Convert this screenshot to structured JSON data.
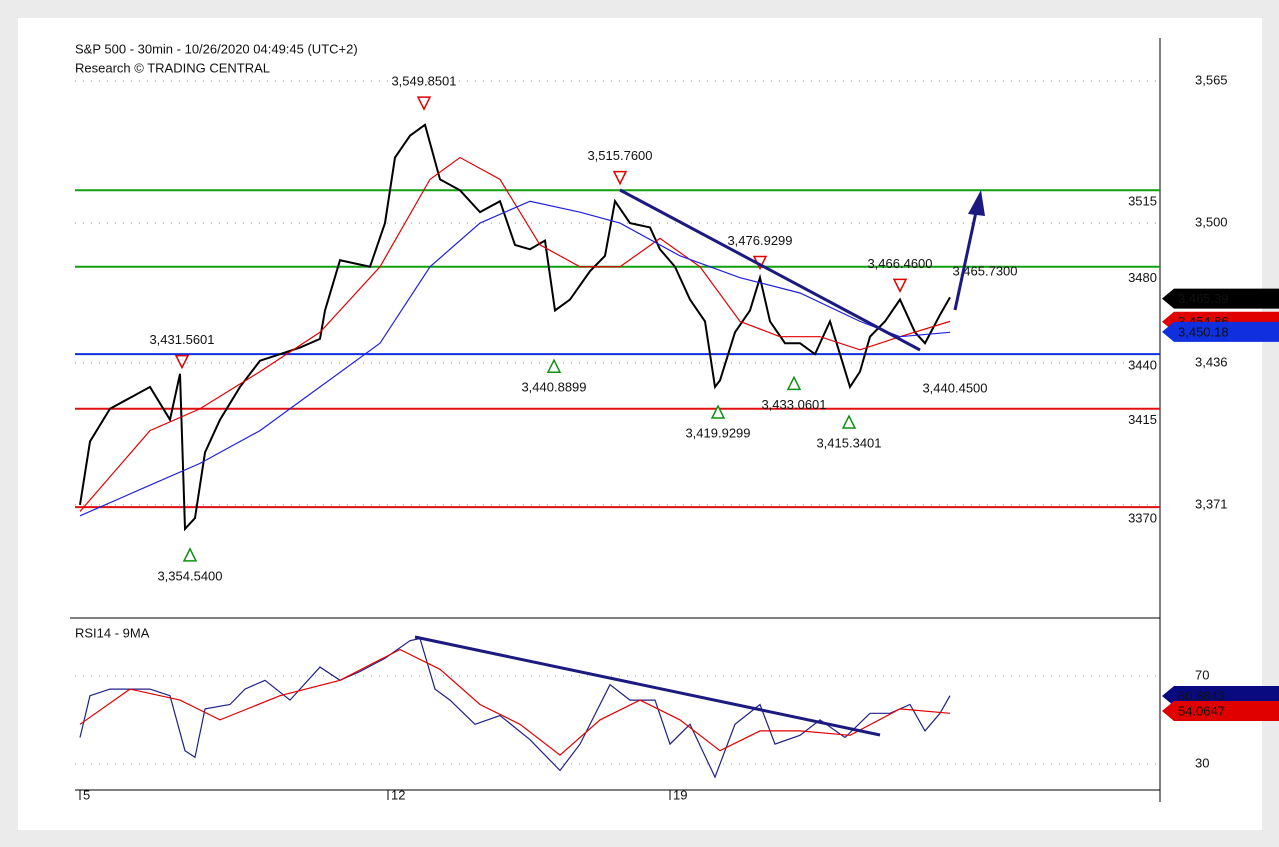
{
  "chart_data": [
    {
      "type": "line",
      "title": "S&P 500 - 30min - 10/26/2020 04:49:45 (UTC+2)",
      "subtitle": "Research © TRADING CENTRAL",
      "xlim": [
        0,
        108.5
      ],
      "ylim": [
        3320.6,
        3583.8
      ],
      "yticks": [
        {
          "value": 3565,
          "label": "3,565"
        },
        {
          "value": 3500,
          "label": "3,500"
        },
        {
          "value": 3436,
          "label": "3,436"
        },
        {
          "value": 3371,
          "label": "3,371"
        }
      ],
      "grid": true,
      "series": [
        {
          "name": "S&P 500",
          "color": "#000000",
          "x": [
            0.5,
            1.5,
            3.5,
            5.5,
            7.5,
            9.5,
            10.5,
            11,
            12,
            13,
            14.5,
            16.5,
            18.5,
            20.5,
            22.5,
            24.5,
            25,
            26.5,
            29.5,
            31,
            32,
            33.5,
            35,
            36.5,
            38.5,
            40.5,
            42.5,
            44,
            45.5,
            47,
            48,
            49.5,
            51.5,
            53,
            54,
            55.5,
            57.5,
            58.5,
            60,
            61.5,
            63,
            64,
            64.5,
            66,
            67.5,
            68.5,
            69.5,
            71,
            72.5,
            74,
            75.5,
            76.5,
            77.5,
            78.5,
            79.5,
            81,
            82.5,
            84,
            85,
            86.5,
            87.5
          ],
          "values": [
            3371,
            3400,
            3415,
            3420,
            3425,
            3410,
            3431,
            3360,
            3365,
            3395,
            3410,
            3425,
            3437,
            3440,
            3443,
            3447,
            3460,
            3483,
            3480,
            3500,
            3530,
            3540,
            3545,
            3520,
            3515,
            3505,
            3510,
            3490,
            3488,
            3492,
            3460,
            3465,
            3478,
            3485,
            3510,
            3500,
            3498,
            3488,
            3480,
            3465,
            3455,
            3425,
            3428,
            3450,
            3460,
            3475,
            3455,
            3445,
            3445,
            3440,
            3455,
            3440,
            3425,
            3432,
            3448,
            3455,
            3465,
            3450,
            3445,
            3458,
            3466
          ]
        },
        {
          "name": "MA fast",
          "color": "#e00000",
          "x": [
            0.5,
            7.5,
            12.5,
            18.5,
            24.5,
            30.5,
            35.5,
            38.5,
            42.5,
            46.5,
            50.5,
            54.5,
            58.5,
            62.5,
            66.5,
            70.5,
            74.5,
            78.5,
            82.5,
            87.5
          ],
          "values": [
            3368,
            3405,
            3415,
            3432,
            3450,
            3480,
            3520,
            3530,
            3520,
            3490,
            3480,
            3480,
            3493,
            3480,
            3455,
            3448,
            3448,
            3442,
            3448,
            3455
          ]
        },
        {
          "name": "MA slow",
          "color": "#2020e0",
          "x": [
            0.5,
            7.5,
            12.5,
            18.5,
            24.5,
            30.5,
            35.5,
            40.5,
            45.5,
            50.5,
            54.5,
            60.5,
            66.5,
            72.5,
            78.5,
            82.5,
            87.5
          ],
          "values": [
            3366,
            3380,
            3390,
            3405,
            3425,
            3445,
            3480,
            3500,
            3510,
            3505,
            3500,
            3485,
            3475,
            3468,
            3455,
            3448,
            3450
          ]
        }
      ],
      "levels": [
        {
          "value": 3515,
          "color": "#10a010"
        },
        {
          "value": 3480,
          "color": "#10a010"
        },
        {
          "value": 3440,
          "color": "#1030e0"
        },
        {
          "value": 3415,
          "color": "#e01010"
        },
        {
          "value": 3370,
          "color": "#e01010"
        }
      ],
      "tags": [
        {
          "value": 3465.39,
          "label": "3,465.39",
          "color": "#000000"
        },
        {
          "value": 3454.86,
          "label": "3,454.86",
          "color": "#e00000"
        },
        {
          "value": 3450.18,
          "label": "3,450.18",
          "color": "#1030e0"
        }
      ],
      "annotations": [
        {
          "x": 34.9,
          "value": 3549.8501,
          "label": "3,549.8501",
          "kind": "high",
          "marker": true
        },
        {
          "x": 54.5,
          "value": 3515.76,
          "label": "3,515.7600",
          "kind": "high",
          "marker": true
        },
        {
          "x": 68.5,
          "value": 3476.9299,
          "label": "3,476.9299",
          "kind": "high",
          "marker": true
        },
        {
          "x": 10.7,
          "value": 3431.5601,
          "label": "3,431.5601",
          "kind": "high",
          "marker": true
        },
        {
          "x": 82.5,
          "value": 3466.46,
          "label": "3,466.4600",
          "kind": "high",
          "marker": true
        },
        {
          "x": 91,
          "value": 3465.73,
          "label": "3,465.7300",
          "kind": "high",
          "marker": false
        },
        {
          "x": 47.9,
          "value": 3440.8899,
          "label": "3,440.8899",
          "kind": "low",
          "marker": true
        },
        {
          "x": 64.3,
          "value": 3419.9299,
          "label": "3,419.9299",
          "kind": "low",
          "marker": true
        },
        {
          "x": 71.9,
          "value": 3433.0601,
          "label": "3,433.0601",
          "kind": "low",
          "marker": true
        },
        {
          "x": 77.4,
          "value": 3415.3401,
          "label": "3,415.3401",
          "kind": "low",
          "marker": true
        },
        {
          "x": 88,
          "value": 3440.45,
          "label": "3,440.4500",
          "kind": "low",
          "marker": false
        },
        {
          "x": 11.5,
          "value": 3354.54,
          "label": "3,354.5400",
          "kind": "low",
          "marker": true
        }
      ]
    },
    {
      "type": "line",
      "title": "RSI14 - 9MA",
      "xlim": [
        0,
        108.5
      ],
      "xticks": [
        {
          "value": 0.5,
          "label": "5"
        },
        {
          "value": 31.3,
          "label": "12"
        },
        {
          "value": 59.5,
          "label": "19"
        }
      ],
      "ylim": [
        13.6,
        95.4
      ],
      "yticks": [
        70,
        30
      ],
      "grid": true,
      "series": [
        {
          "name": "RSI14",
          "color": "#20208a",
          "x": [
            0.5,
            1.5,
            3.5,
            5.5,
            7.5,
            9.5,
            11,
            12,
            13,
            15.5,
            17,
            19,
            21.5,
            24.5,
            26.5,
            28.5,
            31,
            33.5,
            34.5,
            36,
            37.5,
            40,
            42.5,
            45.5,
            48.5,
            50.5,
            53.5,
            55.5,
            58,
            59.5,
            61.5,
            64,
            66,
            68.5,
            70,
            72.5,
            74.5,
            77,
            79.5,
            81.5,
            83.5,
            85,
            86.5,
            87.5
          ],
          "values": [
            42,
            61,
            64,
            64,
            64,
            61,
            36,
            33,
            55,
            57,
            64,
            68,
            59,
            74,
            68,
            72,
            78,
            86,
            87,
            64,
            59,
            48,
            52,
            41,
            27,
            39,
            66,
            59,
            59,
            39,
            48,
            24,
            48,
            57,
            39,
            43,
            50,
            42,
            53,
            53,
            57,
            45,
            53,
            61
          ]
        },
        {
          "name": "9MA",
          "color": "#e00000",
          "x": [
            0.5,
            5.5,
            10.5,
            14.5,
            20.5,
            26.5,
            32.5,
            36.5,
            40.5,
            44.5,
            48.5,
            52.5,
            56.5,
            60.5,
            64.5,
            68.5,
            72.5,
            77.5,
            82.5,
            87.5
          ],
          "values": [
            48,
            64,
            59,
            50,
            61,
            68,
            82,
            73,
            57,
            48,
            34,
            50,
            59,
            50,
            36,
            45,
            45,
            43,
            55,
            53
          ]
        }
      ],
      "tags": [
        {
          "value": 60.8843,
          "label": "60.8843",
          "color": "#0a0a80"
        },
        {
          "value": 54.0647,
          "label": "54.0647",
          "color": "#e00000"
        }
      ]
    }
  ]
}
